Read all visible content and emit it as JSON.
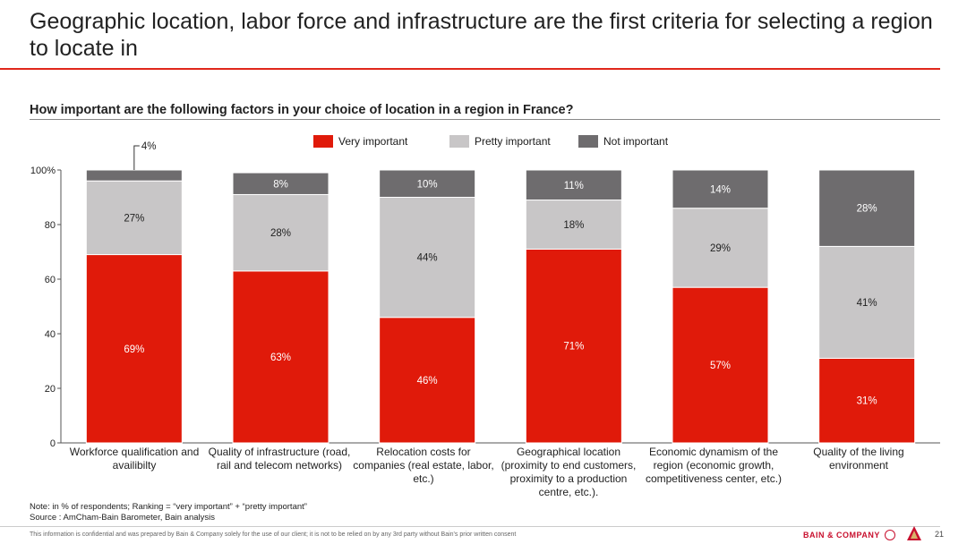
{
  "title": "Geographic location, labor force and infrastructure are the first criteria for selecting a region to locate in",
  "subtitle": "How important are the following factors in your choice of location in a region in France?",
  "colors": {
    "very_important": "#e01a0a",
    "pretty_important": "#c8c6c7",
    "not_important": "#6e6c6e",
    "accent": "#e0281c"
  },
  "chart_data": {
    "type": "bar",
    "stacked": true,
    "categories": [
      "Workforce qualification and availibilty",
      "Quality of infrastructure (road, rail and telecom networks)",
      "Relocation costs for companies (real estate, labor, etc.)",
      "Geographical location (proximity to end customers, proximity to a production centre, etc.).",
      "Economic dynamism of the region (economic growth, competitiveness center, etc.)",
      "Quality of the living environment"
    ],
    "series": [
      {
        "name": "Very important",
        "values": [
          69,
          63,
          46,
          71,
          57,
          31
        ]
      },
      {
        "name": "Pretty important",
        "values": [
          27,
          28,
          44,
          18,
          29,
          41
        ]
      },
      {
        "name": "Not important",
        "values": [
          4,
          8,
          10,
          11,
          14,
          28
        ]
      }
    ],
    "data_labels": [
      [
        "69%",
        "63%",
        "46%",
        "71%",
        "57%",
        "31%"
      ],
      [
        "27%",
        "28%",
        "44%",
        "18%",
        "29%",
        "41%"
      ],
      [
        "4%",
        "8%",
        "10%",
        "11%",
        "14%",
        "28%"
      ]
    ],
    "yticks": [
      "0",
      "20",
      "40",
      "60",
      "80",
      "100%"
    ],
    "ylim": [
      0,
      100
    ],
    "legend_position": "top"
  },
  "legend": [
    {
      "label": "Very important"
    },
    {
      "label": "Pretty important"
    },
    {
      "label": "Not important"
    }
  ],
  "notes": {
    "note": "Note: in % of respondents; Ranking = “very important” + “pretty important”",
    "source": "Source : AmCham-Bain Barometer, Bain analysis"
  },
  "footer": {
    "disclaimer": "This information is confidential and was prepared by Bain & Company solely for the use of our client; it is not to be relied on by any 3rd party without Bain's prior written consent",
    "brand": "BAIN & COMPANY",
    "page": "21"
  }
}
